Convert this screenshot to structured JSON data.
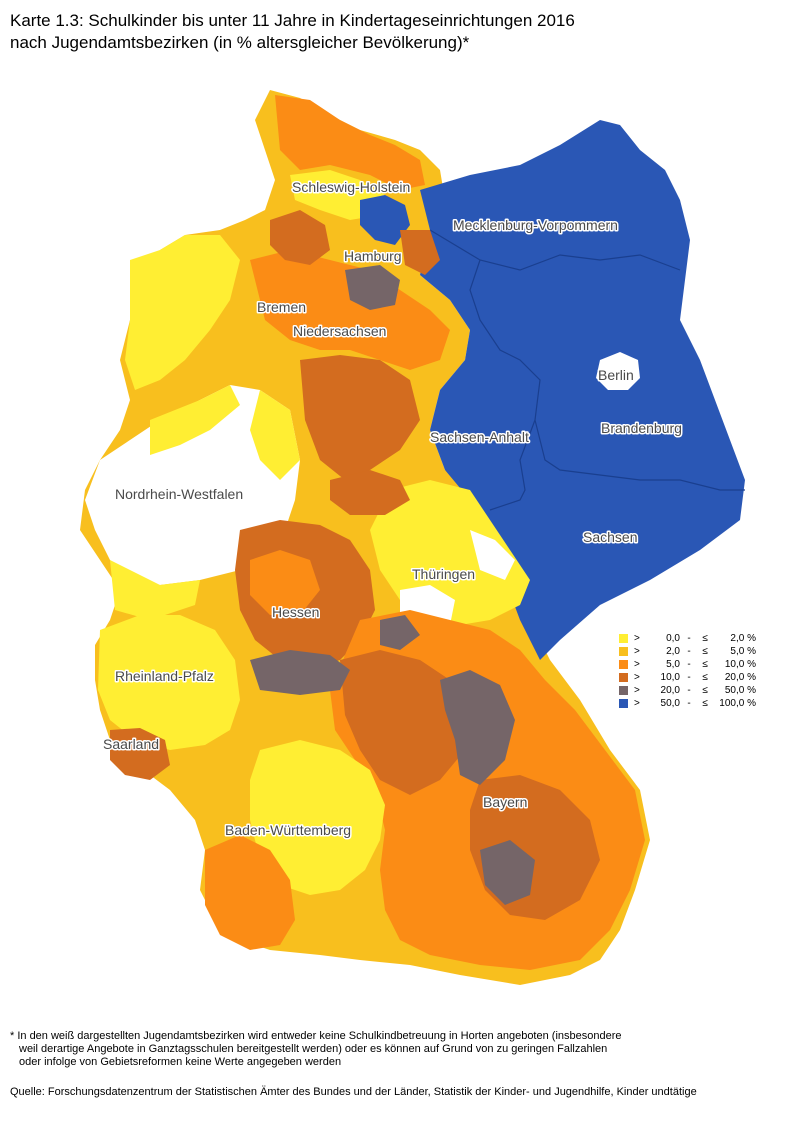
{
  "title": {
    "line1": "Karte 1.3: Schulkinder bis unter 11 Jahre in Kindertageseinrichtungen 2016",
    "line2": "nach Jugendamtsbezirken (in % altersgleicher Bevölkerung)*"
  },
  "legend": [
    {
      "gt": ">",
      "low": "0,0",
      "dash": "-",
      "le": "≤",
      "high": "2,0 %",
      "color": "#ffee33"
    },
    {
      "gt": ">",
      "low": "2,0",
      "dash": "-",
      "le": "≤",
      "high": "5,0 %",
      "color": "#f8bf1e"
    },
    {
      "gt": ">",
      "low": "5,0",
      "dash": "-",
      "le": "≤",
      "high": "10,0 %",
      "color": "#fb8c15"
    },
    {
      "gt": ">",
      "low": "10,0",
      "dash": "-",
      "le": "≤",
      "high": "20,0 %",
      "color": "#d36c1f"
    },
    {
      "gt": ">",
      "low": "20,0",
      "dash": "-",
      "le": "≤",
      "high": "50,0 %",
      "color": "#756568"
    },
    {
      "gt": ">",
      "low": "50,0",
      "dash": "-",
      "le": "≤",
      "high": "100,0 %",
      "color": "#2a57b5"
    }
  ],
  "states": {
    "sh": "Schleswig-Holstein",
    "mv": "Mecklenburg-Vorpommern",
    "hh": "Hamburg",
    "hb": "Bremen",
    "ni": "Niedersachsen",
    "be": "Berlin",
    "bb": "Brandenburg",
    "st": "Sachsen-Anhalt",
    "nw": "Nordrhein-Westfalen",
    "sn": "Sachsen",
    "th": "Thüringen",
    "he": "Hessen",
    "rp": "Rheinland-Pfalz",
    "sl": "Saarland",
    "by": "Bayern",
    "bw": "Baden-Württemberg"
  },
  "footnote": {
    "line1": "* In den weiß dargestellten Jugendamtsbezirken wird entweder keine Schulkindbetreuung in Horten angeboten (insbesondere",
    "line2": "weil derartige Angebote in Ganztagsschulen bereitgestellt werden) oder es können auf Grund von zu geringen Fallzahlen",
    "line3": "oder infolge von Gebietsreformen keine Werte angegeben werden"
  },
  "source": "Quelle: Forschungsdatenzentrum der Statistischen Ämter des Bundes und der Länder, Statistik der Kinder- und Jugendhilfe, Kinder undtätige"
}
